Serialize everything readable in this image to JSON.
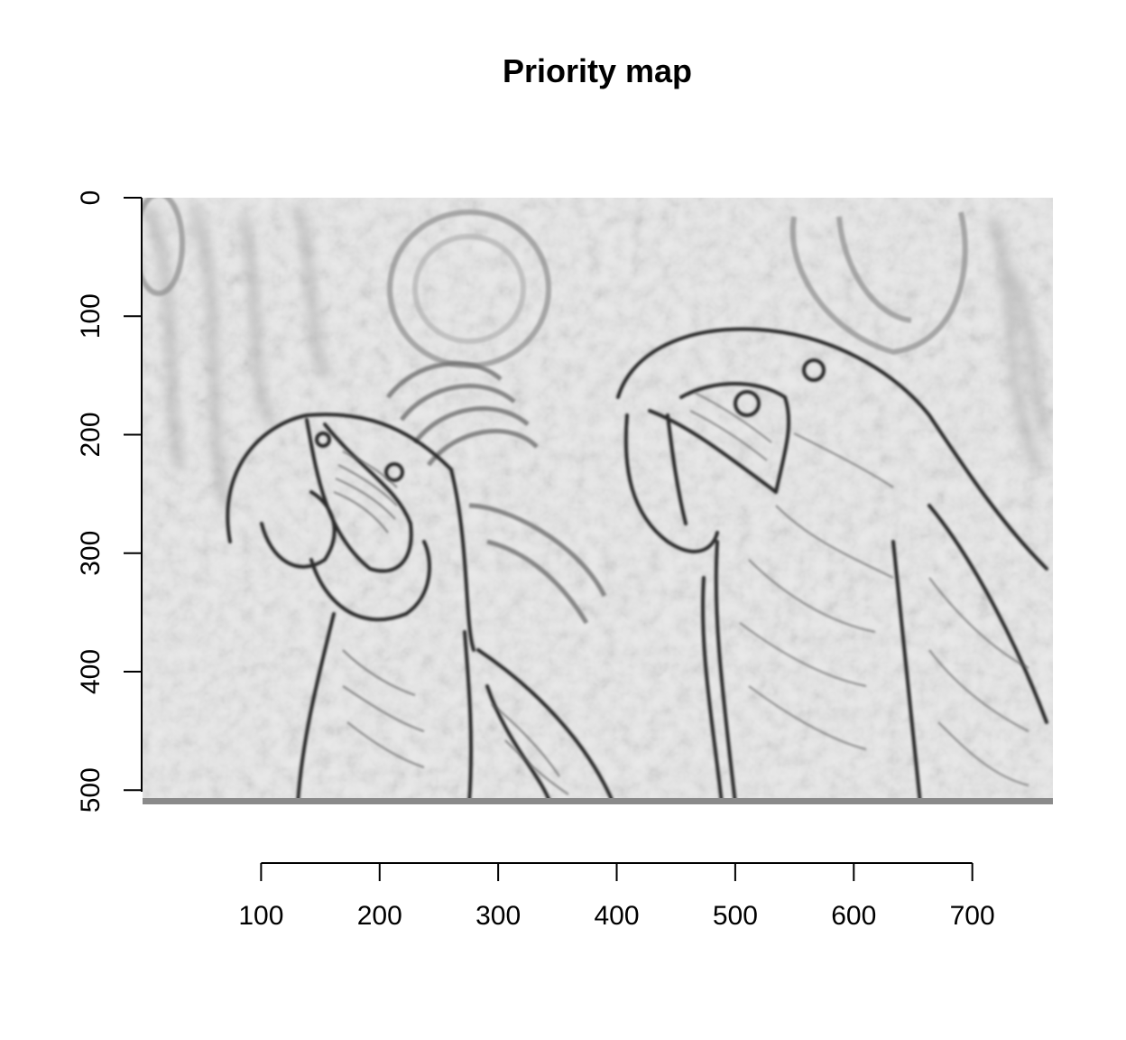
{
  "chart_data": {
    "type": "heatmap",
    "title": "Priority map",
    "xlabel": "",
    "ylabel": "",
    "colormap": "grayscale",
    "image_content": "edge-strength map of two macaws",
    "x_axis": {
      "ticks": [
        100,
        200,
        300,
        400,
        500,
        600,
        700
      ],
      "range": [
        0,
        768
      ]
    },
    "y_axis": {
      "ticks": [
        0,
        100,
        200,
        300,
        400,
        500
      ],
      "range": [
        0,
        512
      ],
      "reversed": true
    },
    "colors": {
      "background": "#e9e9e9",
      "edge_dark": "#2a2a2a",
      "edge_mid": "#6b6b6b",
      "soft_shade": "#a8a8a8",
      "axis": "#000000"
    }
  }
}
